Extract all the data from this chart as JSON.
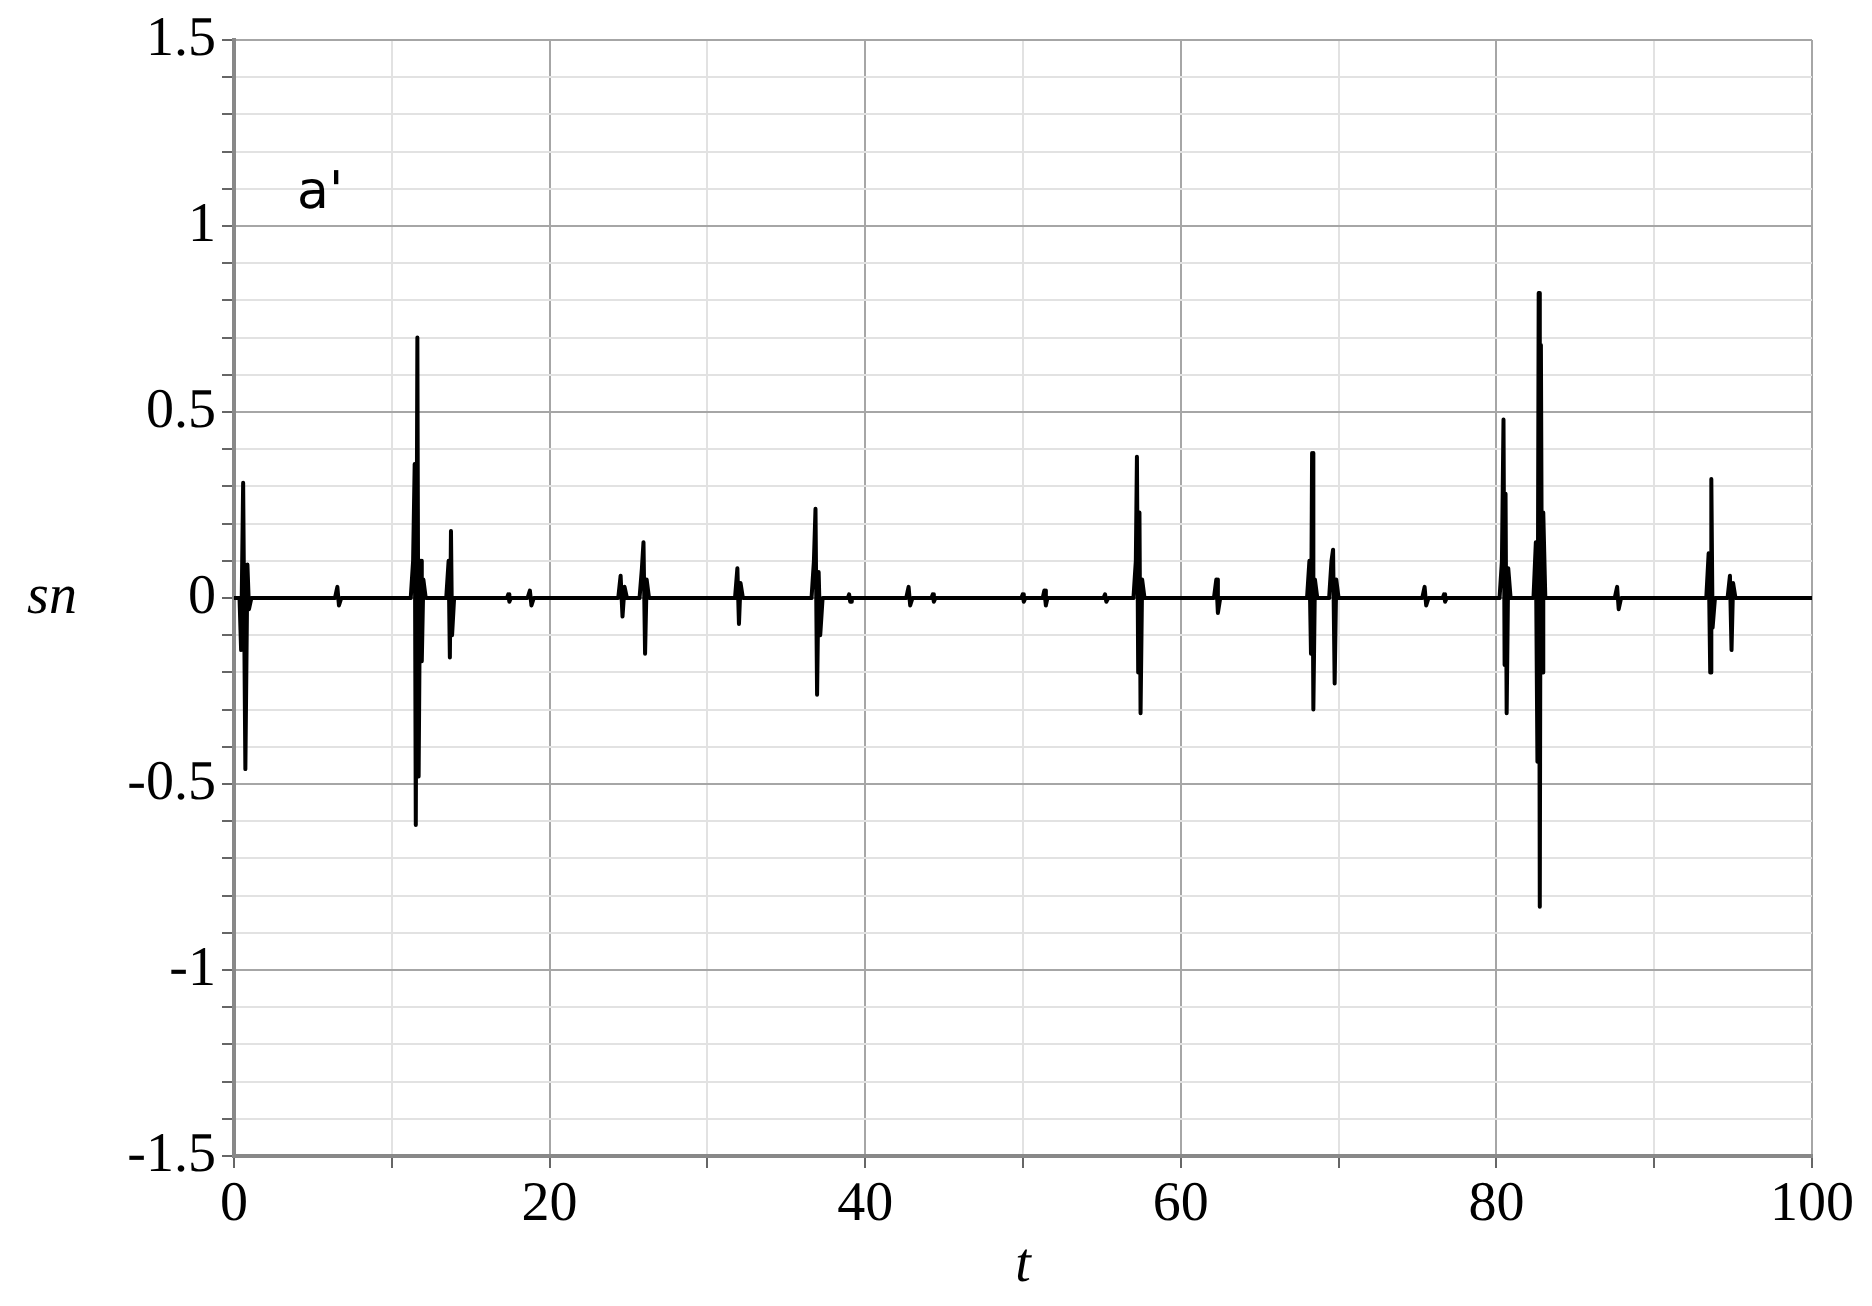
{
  "chart_data": {
    "type": "line",
    "xlabel": "t",
    "ylabel": "sn",
    "annotations": [
      "a'"
    ],
    "x": [
      0,
      0.35,
      0.45,
      0.58,
      0.72,
      0.85,
      0.95,
      1.1,
      6.4,
      6.55,
      6.65,
      6.8,
      11.2,
      11.35,
      11.45,
      11.52,
      11.62,
      11.7,
      11.8,
      11.9,
      12.0,
      12.15,
      13.45,
      13.6,
      13.68,
      13.75,
      13.82,
      13.95,
      17.3,
      17.38,
      17.45,
      17.55,
      18.6,
      18.75,
      18.85,
      19.0,
      24.35,
      24.5,
      24.62,
      24.75,
      24.9,
      25.7,
      25.85,
      25.95,
      26.05,
      26.15,
      26.3,
      31.75,
      31.9,
      32.0,
      32.1,
      32.25,
      36.6,
      36.75,
      36.85,
      36.95,
      37.05,
      37.15,
      37.3,
      38.9,
      38.98,
      39.05,
      39.15,
      42.6,
      42.75,
      42.85,
      43.0,
      44.2,
      44.28,
      44.35,
      44.45,
      49.9,
      49.98,
      50.05,
      50.15,
      51.25,
      51.35,
      51.45,
      51.55,
      55.1,
      55.2,
      55.28,
      55.4,
      57.0,
      57.15,
      57.22,
      57.3,
      57.38,
      57.45,
      57.55,
      57.7,
      62.1,
      62.25,
      62.35,
      62.5,
      68.0,
      68.15,
      68.25,
      68.32,
      68.4,
      68.5,
      68.65,
      69.4,
      69.55,
      69.65,
      69.75,
      69.85,
      70.0,
      75.3,
      75.45,
      75.55,
      75.7,
      76.6,
      76.68,
      76.75,
      76.85,
      80.2,
      80.35,
      80.45,
      80.52,
      80.58,
      80.65,
      80.75,
      80.9,
      82.35,
      82.5,
      82.6,
      82.68,
      82.75,
      82.82,
      82.9,
      82.97,
      83.1,
      87.5,
      87.65,
      87.75,
      87.9,
      93.3,
      93.45,
      93.55,
      93.62,
      93.7,
      93.85,
      94.65,
      94.8,
      94.9,
      95.0,
      95.15,
      100
    ],
    "values": [
      0,
      0,
      -0.14,
      0.31,
      -0.46,
      0.09,
      -0.03,
      0,
      0,
      0.03,
      -0.02,
      0,
      0,
      0.1,
      0.36,
      -0.61,
      0.7,
      -0.48,
      0.1,
      -0.17,
      0.05,
      0,
      0,
      0.1,
      -0.16,
      0.18,
      -0.1,
      0,
      0,
      0.01,
      -0.01,
      0,
      0,
      0.02,
      -0.02,
      0,
      0,
      0.06,
      -0.05,
      0.03,
      0,
      0,
      0.08,
      0.15,
      -0.15,
      0.05,
      0,
      0,
      0.08,
      -0.07,
      0.04,
      0,
      0,
      0.1,
      0.24,
      -0.26,
      0.07,
      -0.1,
      0,
      0,
      0.01,
      -0.01,
      0,
      0,
      0.03,
      -0.02,
      0,
      0,
      0.01,
      -0.01,
      0,
      0,
      0.01,
      -0.01,
      0,
      0,
      0.02,
      -0.02,
      0,
      0,
      0.01,
      -0.01,
      0,
      0,
      0.1,
      0.38,
      -0.2,
      0.23,
      -0.31,
      0.05,
      0,
      0,
      0.05,
      -0.04,
      0,
      0,
      0.1,
      -0.15,
      0.39,
      -0.3,
      0.05,
      0,
      0,
      0.1,
      0.13,
      -0.23,
      0.05,
      0,
      0,
      0.03,
      -0.02,
      0,
      0,
      0.01,
      -0.01,
      0,
      0,
      0.1,
      0.48,
      -0.18,
      0.28,
      -0.31,
      0.08,
      0,
      0,
      0.15,
      -0.44,
      0.82,
      -0.83,
      0.68,
      -0.2,
      0.23,
      0,
      0,
      0.03,
      -0.03,
      0,
      0,
      0.12,
      -0.2,
      0.32,
      -0.08,
      0,
      0,
      0.06,
      -0.14,
      0.04,
      0,
      0
    ],
    "color": "#000000",
    "marker": "none",
    "legend": false,
    "grid": true,
    "xlim": [
      0,
      100
    ],
    "ylim": [
      -1.5,
      1.5
    ],
    "xticks": [
      0,
      {
        "value": 10,
        "label": null
      },
      20,
      {
        "value": 30,
        "label": null
      },
      40,
      {
        "value": 50,
        "label": null
      },
      60,
      {
        "value": 70,
        "label": null
      },
      80,
      {
        "value": 90,
        "label": null
      },
      100
    ],
    "yticks": [
      -1.5,
      {
        "value": -1.4,
        "label": null
      },
      {
        "value": -1.3,
        "label": null
      },
      {
        "value": -1.2,
        "label": null
      },
      {
        "value": -1.1,
        "label": null
      },
      -1,
      {
        "value": -0.9,
        "label": null
      },
      {
        "value": -0.8,
        "label": null
      },
      {
        "value": -0.7,
        "label": null
      },
      {
        "value": -0.6,
        "label": null
      },
      -0.5,
      {
        "value": -0.4,
        "label": null
      },
      {
        "value": -0.3,
        "label": null
      },
      {
        "value": -0.2,
        "label": null
      },
      {
        "value": -0.1,
        "label": null
      },
      0,
      {
        "value": 0.1,
        "label": null
      },
      {
        "value": 0.2,
        "label": null
      },
      {
        "value": 0.3,
        "label": null
      },
      {
        "value": 0.4,
        "label": null
      },
      0.5,
      {
        "value": 0.6,
        "label": null
      },
      {
        "value": 0.7,
        "label": null
      },
      {
        "value": 0.8,
        "label": null
      },
      {
        "value": 0.9,
        "label": null
      },
      1,
      {
        "value": 1.1,
        "label": null
      },
      {
        "value": 1.2,
        "label": null
      },
      {
        "value": 1.3,
        "label": null
      },
      {
        "value": 1.4,
        "label": null
      },
      1.5
    ]
  }
}
